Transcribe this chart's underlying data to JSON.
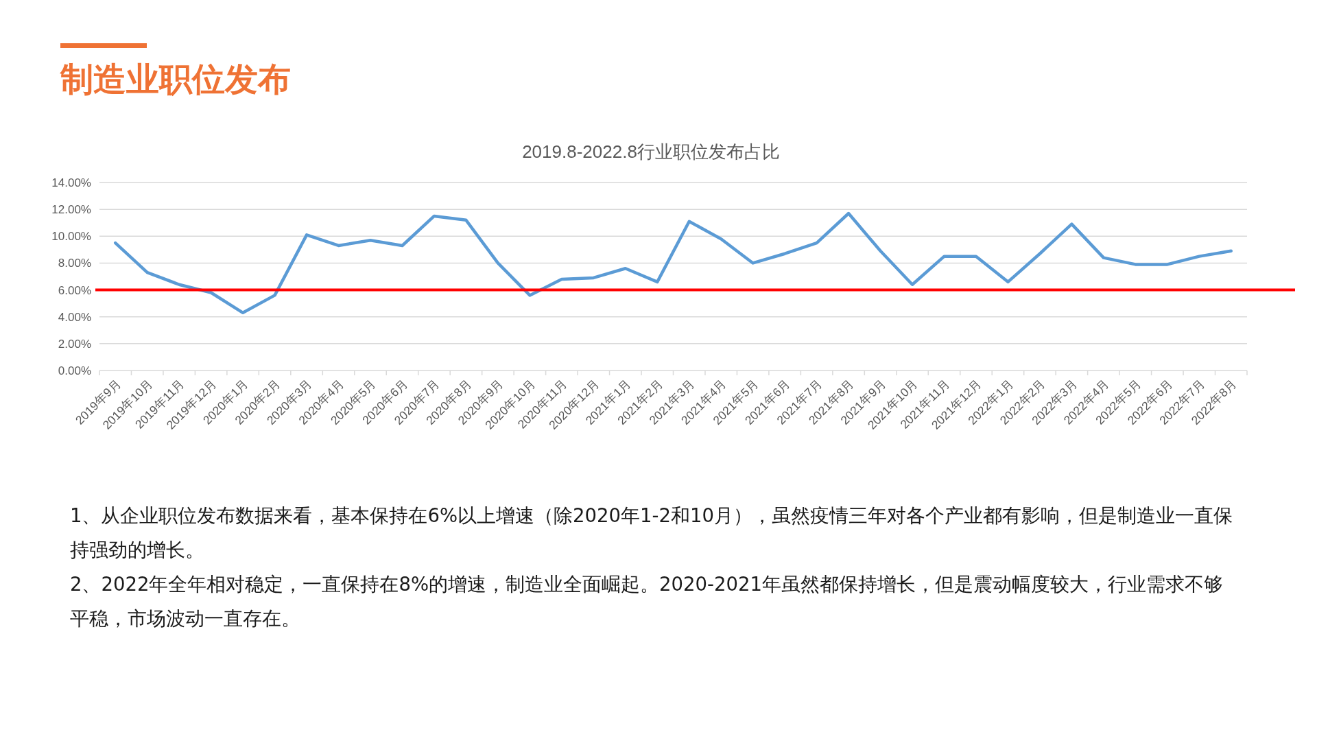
{
  "chart_data": {
    "type": "line",
    "title": "制造业职位发布",
    "subtitle": "2019.8-2022.8行业职位发布占比",
    "categories": [
      "2019年9月",
      "2019年10月",
      "2019年11月",
      "2019年12月",
      "2020年1月",
      "2020年2月",
      "2020年3月",
      "2020年4月",
      "2020年5月",
      "2020年6月",
      "2020年7月",
      "2020年8月",
      "2020年9月",
      "2020年10月",
      "2020年11月",
      "2020年12月",
      "2021年1月",
      "2021年2月",
      "2021年3月",
      "2021年4月",
      "2021年5月",
      "2021年6月",
      "2021年7月",
      "2021年8月",
      "2021年9月",
      "2021年10月",
      "2021年11月",
      "2021年12月",
      "2022年1月",
      "2022年2月",
      "2022年3月",
      "2022年4月",
      "2022年5月",
      "2022年6月",
      "2022年7月",
      "2022年8月"
    ],
    "series": [
      {
        "color": "#5b9bd5",
        "values": [
          9.5,
          7.3,
          6.4,
          5.8,
          4.3,
          5.6,
          10.1,
          9.3,
          9.7,
          9.3,
          11.5,
          11.2,
          8.0,
          5.6,
          6.8,
          6.9,
          7.6,
          6.6,
          11.1,
          9.8,
          8.0,
          8.7,
          9.5,
          11.7,
          8.9,
          6.4,
          8.5,
          8.5,
          6.6,
          8.7,
          10.9,
          8.4,
          7.9,
          7.9,
          8.5,
          8.9
        ]
      }
    ],
    "ylim": [
      0,
      14
    ],
    "yticks": [
      {
        "value": 0,
        "label": "0.00%"
      },
      {
        "value": 2,
        "label": "2.00%"
      },
      {
        "value": 4,
        "label": "4.00%"
      },
      {
        "value": 6,
        "label": "6.00%"
      },
      {
        "value": 8,
        "label": "8.00%"
      },
      {
        "value": 10,
        "label": "10.00%"
      },
      {
        "value": 12,
        "label": "12.00%"
      },
      {
        "value": 14,
        "label": "14.00%"
      }
    ],
    "grid": "y",
    "line_style": "solid",
    "ref_lines": [
      {
        "axis": "y",
        "value": 6,
        "color": "#ff0000"
      }
    ],
    "annotations": [
      "1、从企业职位发布数据来看，基本保持在6%以上增速（除2020年1-2和10月），虽然疫情三年对各个产业都有影响，但是制造业一直保持强劲的增长。",
      "2、2022年全年相对稳定，一直保持在8%的增速，制造业全面崛起。2020-2021年虽然都保持增长，但是震动幅度较大，行业需求不够平稳，市场波动一直存在。"
    ]
  }
}
